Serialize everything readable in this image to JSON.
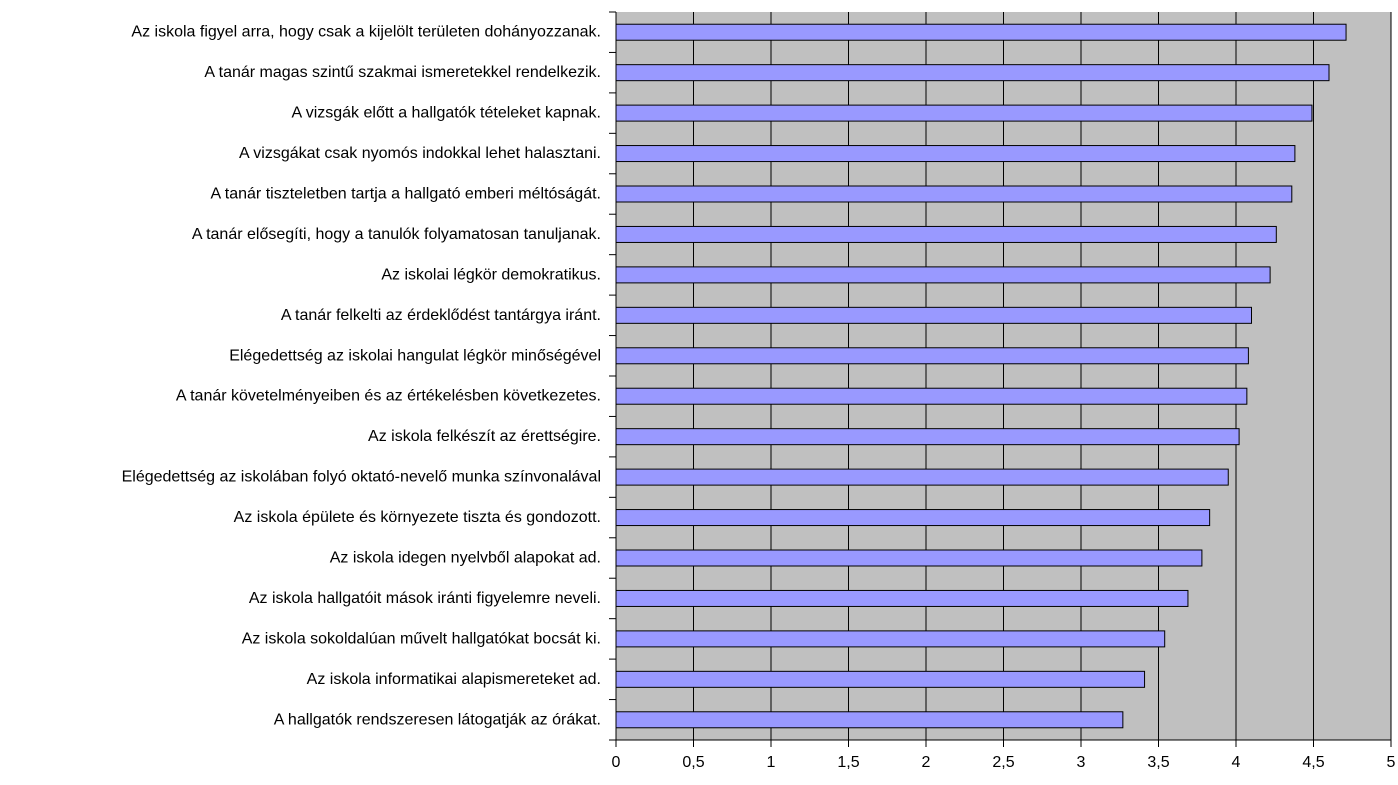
{
  "chart_data": {
    "type": "bar",
    "orientation": "horizontal",
    "categories": [
      "Az iskola figyel arra, hogy csak a kijelölt területen dohányozzanak.",
      "A tanár magas szintű szakmai ismeretekkel rendelkezik.",
      "A vizsgák előtt a hallgatók tételeket kapnak.",
      "A vizsgákat csak nyomós indokkal lehet halasztani.",
      "A tanár tiszteletben tartja a hallgató emberi méltóságát.",
      "A tanár elősegíti, hogy a tanulók folyamatosan tanuljanak.",
      "Az iskolai légkör demokratikus.",
      "A tanár felkelti az érdeklődést tantárgya iránt.",
      "Elégedettség az iskolai hangulat légkör minőségével",
      "A tanár követelményeiben és az értékelésben következetes.",
      "Az iskola felkészít az érettségire.",
      "Elégedettség az iskolában folyó oktató-nevelő munka színvonalával",
      "Az iskola épülete és környezete tiszta és gondozott.",
      "Az iskola idegen nyelvből alapokat ad.",
      "Az iskola hallgatóit mások iránti figyelemre neveli.",
      "Az iskola sokoldalúan művelt hallgatókat bocsát ki.",
      "Az iskola  informatikai alapismereteket ad.",
      "A hallgatók rendszeresen látogatják az órákat."
    ],
    "values": [
      4.71,
      4.6,
      4.49,
      4.38,
      4.36,
      4.26,
      4.22,
      4.1,
      4.08,
      4.07,
      4.02,
      3.95,
      3.83,
      3.78,
      3.69,
      3.54,
      3.41,
      3.27
    ],
    "xlim": [
      0,
      5
    ],
    "xticks": [
      "0",
      "0,5",
      "1",
      "1,5",
      "2",
      "2,5",
      "3",
      "3,5",
      "4",
      "4,5",
      "5"
    ],
    "xtick_values": [
      0,
      0.5,
      1,
      1.5,
      2,
      2.5,
      3,
      3.5,
      4,
      4.5,
      5
    ],
    "grid": true,
    "legend": "none",
    "colors": {
      "bar_fill": "#9999ff",
      "bar_stroke": "#000000",
      "plot_background": "#c0c0c0",
      "gridline": "#000000"
    }
  }
}
